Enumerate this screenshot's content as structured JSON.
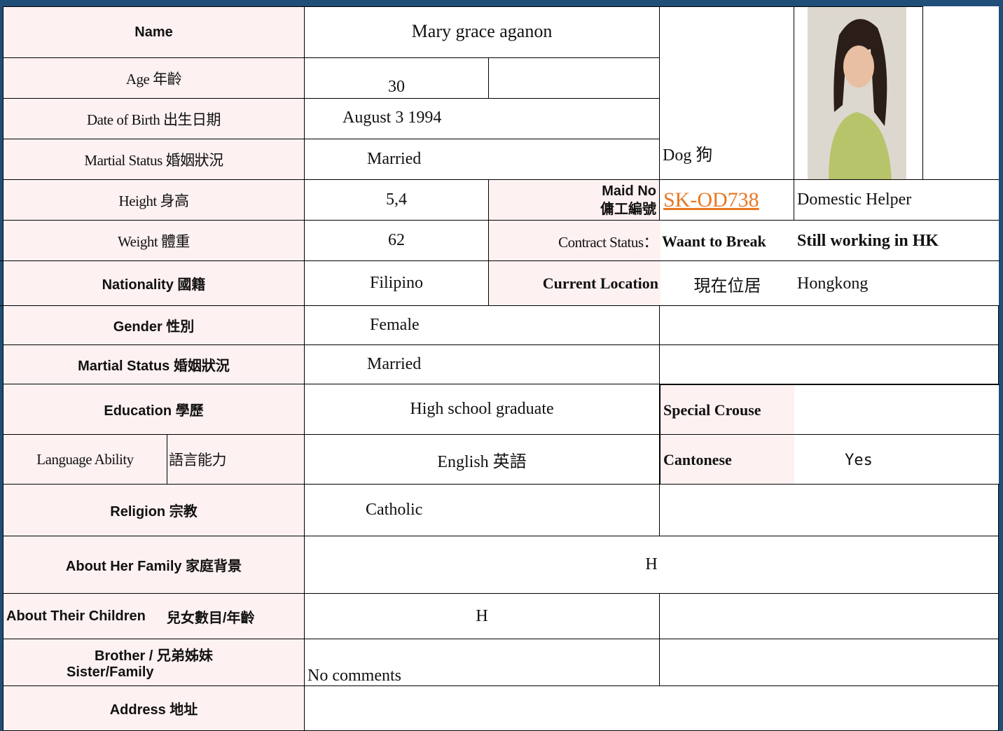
{
  "name": {
    "label": "Name",
    "value": "Mary grace aganon"
  },
  "age": {
    "label": "Age 年齡",
    "value": "30"
  },
  "date_of_birth": {
    "label": "Date of Birth  出生日期",
    "value": "August 3 1994"
  },
  "marital_status": {
    "label": "Martial Status  婚姻狀況",
    "value": "Married"
  },
  "height": {
    "label": "Height  身高",
    "value": "5,4"
  },
  "weight": {
    "label": "Weight  體重",
    "value": "62"
  },
  "nationality": {
    "label": "Nationality 國籍",
    "value": "Filipino"
  },
  "gender": {
    "label": "Gender 性別",
    "value": "Female"
  },
  "marital_status_2": {
    "label": "Martial Status 婚姻狀況",
    "value": "Married"
  },
  "education": {
    "label": "Education 學歷",
    "value": "High school graduate"
  },
  "language": {
    "label": "Language Ability",
    "label_zh": "語言能力",
    "value": "English 英語"
  },
  "religion": {
    "label": "Religion 宗教",
    "value": "Catholic"
  },
  "family": {
    "label": "About Her Family 家庭背景",
    "value": "H"
  },
  "children": {
    "label": "About Their Children",
    "label_zh": "兒女數目/年齡",
    "value": "H"
  },
  "siblings": {
    "label": "Brother /",
    "label_2": "Sister/Family",
    "label_zh": "兄弟姊妹",
    "value": "No comments"
  },
  "address": {
    "label": "Address 地址"
  },
  "zodiac": "Dog 狗",
  "maid_no": {
    "label": "Maid No",
    "label_zh": "傭工編號",
    "value": "SK-OD738",
    "position": "Domestic Helper"
  },
  "contract_status": {
    "label": "Contract Status：",
    "value": "Waant to Break",
    "note": "Still working in HK"
  },
  "current_location": {
    "label": "Current Location",
    "label_zh": "現在位居",
    "value": "Hongkong"
  },
  "special_course": {
    "label": "Special Crouse"
  },
  "cantonese": {
    "label": "Cantonese",
    "value": "Yes"
  }
}
